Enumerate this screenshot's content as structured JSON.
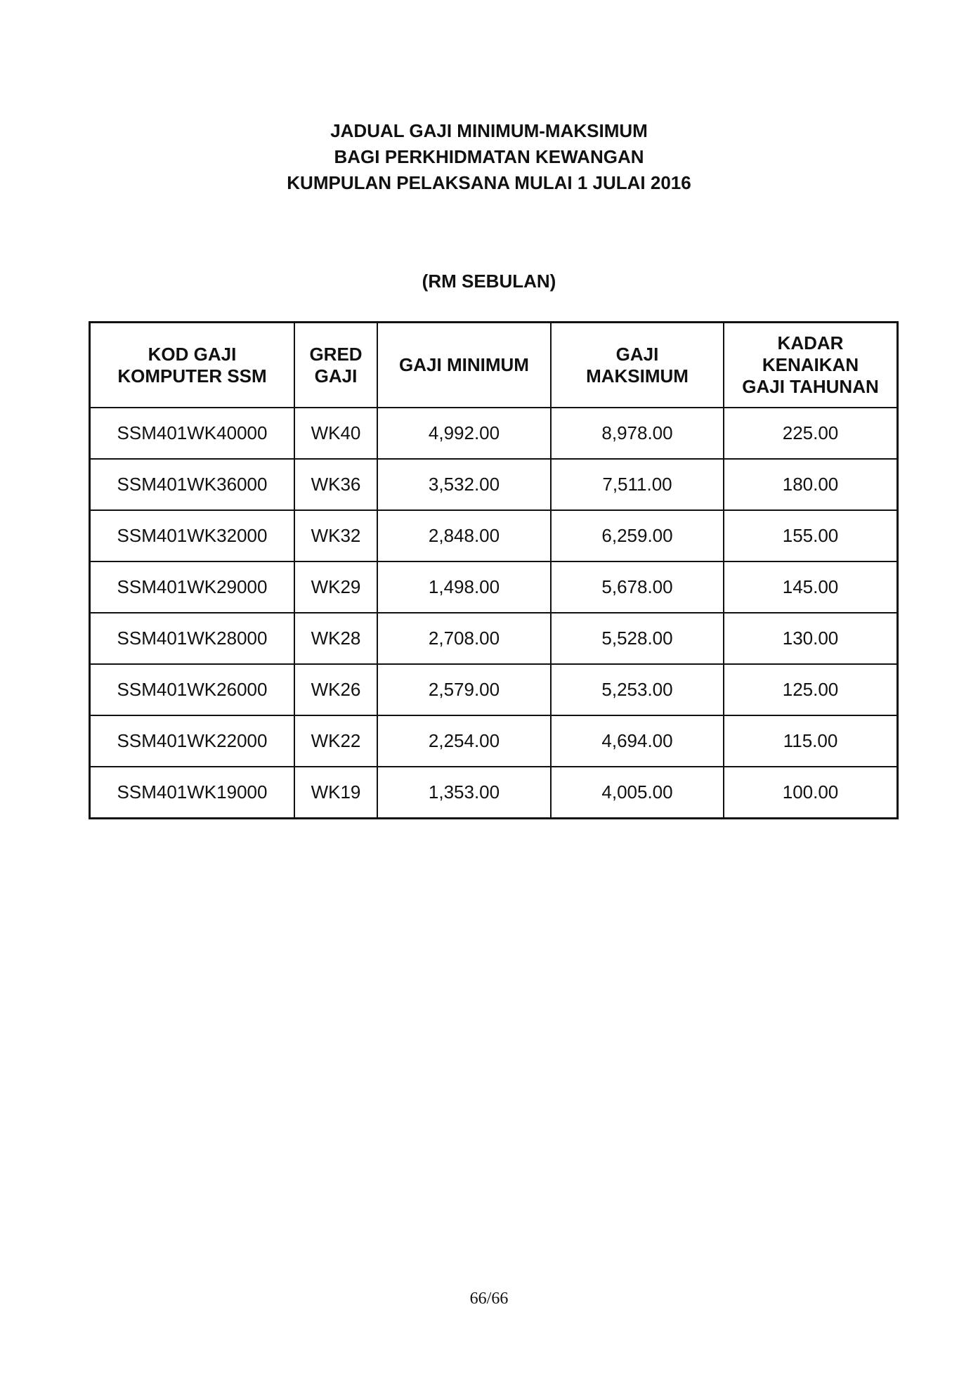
{
  "title_lines": [
    "JADUAL GAJI MINIMUM-MAKSIMUM",
    "BAGI PERKHIDMATAN KEWANGAN",
    "KUMPULAN PELAKSANA MULAI 1 JULAI 2016"
  ],
  "unit": "(RM SEBULAN)",
  "table": {
    "headers": [
      [
        "KOD GAJI",
        "KOMPUTER SSM"
      ],
      [
        "GRED",
        "GAJI"
      ],
      [
        "GAJI MINIMUM"
      ],
      [
        "GAJI",
        "MAKSIMUM"
      ],
      [
        "KADAR",
        "KENAIKAN",
        "GAJI TAHUNAN"
      ]
    ],
    "rows": [
      [
        "SSM401WK40000",
        "WK40",
        "4,992.00",
        "8,978.00",
        "225.00"
      ],
      [
        "SSM401WK36000",
        "WK36",
        "3,532.00",
        "7,511.00",
        "180.00"
      ],
      [
        "SSM401WK32000",
        "WK32",
        "2,848.00",
        "6,259.00",
        "155.00"
      ],
      [
        "SSM401WK29000",
        "WK29",
        "1,498.00",
        "5,678.00",
        "145.00"
      ],
      [
        "SSM401WK28000",
        "WK28",
        "2,708.00",
        "5,528.00",
        "130.00"
      ],
      [
        "SSM401WK26000",
        "WK26",
        "2,579.00",
        "5,253.00",
        "125.00"
      ],
      [
        "SSM401WK22000",
        "WK22",
        "2,254.00",
        "4,694.00",
        "115.00"
      ],
      [
        "SSM401WK19000",
        "WK19",
        "1,353.00",
        "4,005.00",
        "100.00"
      ]
    ]
  },
  "page_number": "66/66"
}
